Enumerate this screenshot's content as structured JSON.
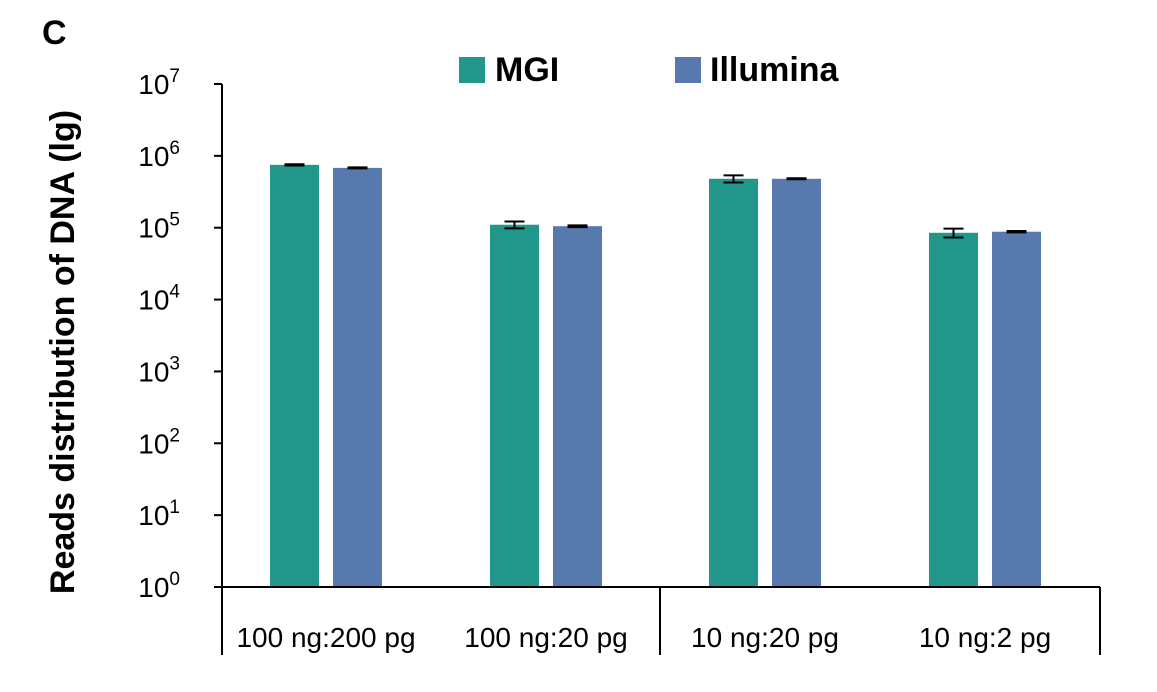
{
  "panel_label": "C",
  "colors": {
    "MGI": "#21978b",
    "Illumina": "#5879ae"
  },
  "chart_data": {
    "type": "bar",
    "ylabel": "Reads distribution of DNA (lg)",
    "xlabel": "",
    "yscale": "log10",
    "ylim": [
      1,
      10000000
    ],
    "yticks": [
      {
        "base": "10",
        "exp": "0"
      },
      {
        "base": "10",
        "exp": "1"
      },
      {
        "base": "10",
        "exp": "2"
      },
      {
        "base": "10",
        "exp": "3"
      },
      {
        "base": "10",
        "exp": "4"
      },
      {
        "base": "10",
        "exp": "5"
      },
      {
        "base": "10",
        "exp": "6"
      },
      {
        "base": "10",
        "exp": "7"
      }
    ],
    "categories": [
      "100 ng:200 pg",
      "100 ng:20 pg",
      "10 ng:20 pg",
      "10 ng:2 pg"
    ],
    "category_groups": [
      [
        "100 ng:200 pg",
        "100 ng:20 pg"
      ],
      [
        "10 ng:20 pg",
        "10 ng:2 pg"
      ]
    ],
    "series": [
      {
        "name": "MGI",
        "values": [
          750000,
          110000,
          480000,
          85000
        ],
        "errors": [
          15000,
          12000,
          55000,
          12000
        ]
      },
      {
        "name": "Illumina",
        "values": [
          680000,
          105000,
          480000,
          88000
        ],
        "errors": [
          10000,
          3000,
          8000,
          2000
        ]
      }
    ],
    "legend_position": "top-center",
    "grid": false
  }
}
